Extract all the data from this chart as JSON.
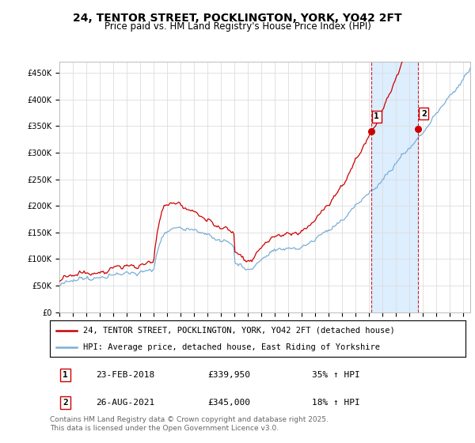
{
  "title": "24, TENTOR STREET, POCKLINGTON, YORK, YO42 2FT",
  "subtitle": "Price paid vs. HM Land Registry's House Price Index (HPI)",
  "ylabel_ticks": [
    "£0",
    "£50K",
    "£100K",
    "£150K",
    "£200K",
    "£250K",
    "£300K",
    "£350K",
    "£400K",
    "£450K"
  ],
  "ytick_values": [
    0,
    50000,
    100000,
    150000,
    200000,
    250000,
    300000,
    350000,
    400000,
    450000
  ],
  "ylim": [
    0,
    470000
  ],
  "xlim_start": 1995.0,
  "xlim_end": 2025.5,
  "red_line_color": "#cc0000",
  "blue_line_color": "#7aaed6",
  "shade_color": "#ddeeff",
  "marker1_date": 2018.15,
  "marker1_price": 339950,
  "marker2_date": 2021.65,
  "marker2_price": 345000,
  "marker1_label": "1",
  "marker2_label": "2",
  "legend_line1": "24, TENTOR STREET, POCKLINGTON, YORK, YO42 2FT (detached house)",
  "legend_line2": "HPI: Average price, detached house, East Riding of Yorkshire",
  "table_row1": [
    "1",
    "23-FEB-2018",
    "£339,950",
    "35% ↑ HPI"
  ],
  "table_row2": [
    "2",
    "26-AUG-2021",
    "£345,000",
    "18% ↑ HPI"
  ],
  "footer": "Contains HM Land Registry data © Crown copyright and database right 2025.\nThis data is licensed under the Open Government Licence v3.0.",
  "background_color": "#ffffff",
  "grid_color": "#dddddd",
  "vline_color": "#cc0000",
  "title_fontsize": 10,
  "subtitle_fontsize": 8.5,
  "tick_fontsize": 7,
  "legend_fontsize": 7.5,
  "table_fontsize": 8,
  "footer_fontsize": 6.5
}
